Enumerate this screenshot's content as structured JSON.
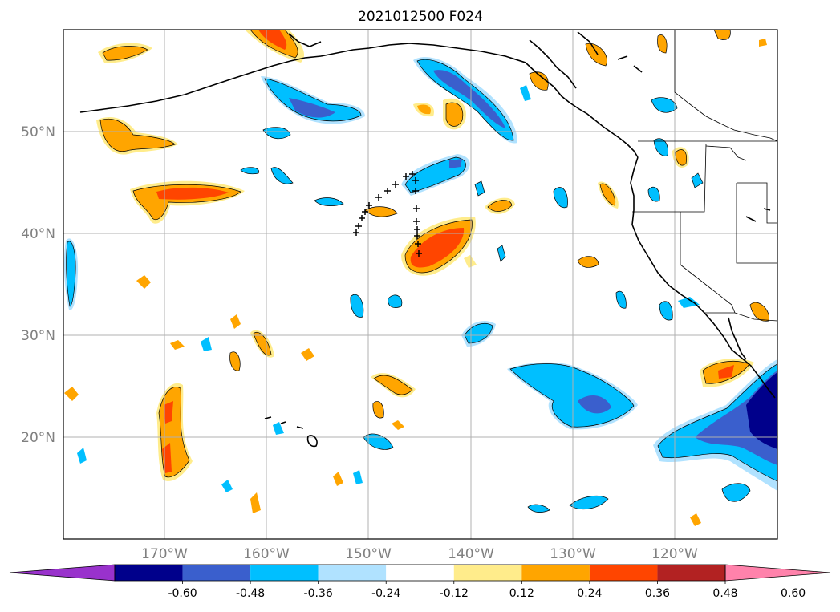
{
  "title": "2021012500 F024",
  "map": {
    "lon_range": [
      -180,
      -110
    ],
    "lat_range": [
      10,
      60
    ],
    "gridlines": true,
    "lon_ticks": [
      "170°W",
      "160°W",
      "150°W",
      "140°W",
      "130°W",
      "120°W"
    ],
    "lat_ticks": [
      "20°N",
      "30°N",
      "40°N",
      "50°N"
    ],
    "colorbar": {
      "levels": [
        "-0.60",
        "-0.48",
        "-0.36",
        "-0.24",
        "-0.12",
        "0.12",
        "0.24",
        "0.36",
        "0.48",
        "0.60"
      ],
      "colors": [
        "#9932CC",
        "#00008B",
        "#3A5FCD",
        "#00BFFF",
        "#B0E2FF",
        "#FFFFFF",
        "#FFEC8B",
        "#FFA500",
        "#FF4500",
        "#B22222",
        "#FF82AB"
      ],
      "extend": "both"
    }
  }
}
